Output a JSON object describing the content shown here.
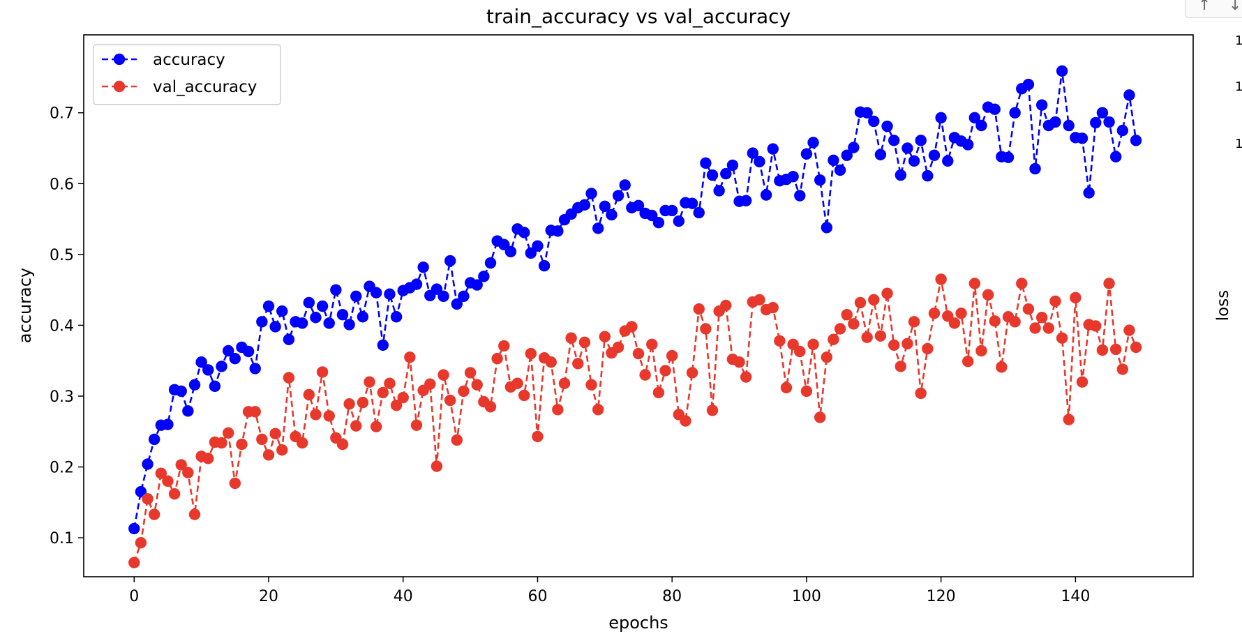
{
  "chart_data": {
    "type": "line",
    "title": "train_accuracy vs val_accuracy",
    "xlabel": "epochs",
    "ylabel": "accuracy",
    "xlim": [
      -7.5,
      157.5
    ],
    "ylim": [
      0.045,
      0.81
    ],
    "xticks": [
      0,
      20,
      40,
      60,
      80,
      100,
      120,
      140
    ],
    "yticks": [
      0.1,
      0.2,
      0.3,
      0.4,
      0.5,
      0.6,
      0.7
    ],
    "grid": false,
    "legend_position": "top-left",
    "series": [
      {
        "name": "accuracy",
        "color": "#0000ff",
        "linestyle": "dashed",
        "marker": "circle",
        "values": [
          0.113,
          0.165,
          0.204,
          0.239,
          0.259,
          0.26,
          0.309,
          0.307,
          0.279,
          0.316,
          0.348,
          0.337,
          0.314,
          0.342,
          0.364,
          0.353,
          0.369,
          0.363,
          0.339,
          0.405,
          0.427,
          0.398,
          0.42,
          0.38,
          0.405,
          0.403,
          0.432,
          0.411,
          0.427,
          0.403,
          0.45,
          0.415,
          0.401,
          0.441,
          0.412,
          0.455,
          0.446,
          0.372,
          0.444,
          0.412,
          0.449,
          0.453,
          0.458,
          0.482,
          0.442,
          0.451,
          0.441,
          0.491,
          0.43,
          0.441,
          0.46,
          0.457,
          0.469,
          0.488,
          0.519,
          0.514,
          0.504,
          0.536,
          0.531,
          0.502,
          0.512,
          0.484,
          0.534,
          0.533,
          0.549,
          0.557,
          0.566,
          0.57,
          0.586,
          0.537,
          0.568,
          0.556,
          0.583,
          0.598,
          0.566,
          0.569,
          0.558,
          0.555,
          0.545,
          0.562,
          0.562,
          0.547,
          0.573,
          0.572,
          0.559,
          0.629,
          0.612,
          0.59,
          0.614,
          0.626,
          0.575,
          0.576,
          0.643,
          0.631,
          0.584,
          0.649,
          0.604,
          0.606,
          0.61,
          0.583,
          0.642,
          0.658,
          0.605,
          0.538,
          0.633,
          0.619,
          0.64,
          0.651,
          0.701,
          0.7,
          0.688,
          0.641,
          0.681,
          0.661,
          0.612,
          0.65,
          0.632,
          0.661,
          0.611,
          0.64,
          0.693,
          0.632,
          0.665,
          0.66,
          0.655,
          0.693,
          0.682,
          0.708,
          0.705,
          0.638,
          0.637,
          0.7,
          0.734,
          0.74,
          0.621,
          0.711,
          0.682,
          0.687,
          0.759,
          0.682,
          0.665,
          0.664,
          0.587,
          0.686,
          0.7,
          0.687,
          0.638,
          0.675,
          0.725,
          0.661
        ]
      },
      {
        "name": "val_accuracy",
        "color": "#e8372b",
        "linestyle": "dashed",
        "marker": "circle",
        "values": [
          0.065,
          0.093,
          0.155,
          0.133,
          0.191,
          0.18,
          0.162,
          0.203,
          0.192,
          0.133,
          0.215,
          0.212,
          0.235,
          0.234,
          0.248,
          0.177,
          0.232,
          0.278,
          0.278,
          0.239,
          0.217,
          0.247,
          0.224,
          0.326,
          0.243,
          0.234,
          0.302,
          0.274,
          0.334,
          0.272,
          0.241,
          0.232,
          0.289,
          0.258,
          0.291,
          0.32,
          0.257,
          0.305,
          0.318,
          0.287,
          0.298,
          0.355,
          0.259,
          0.308,
          0.317,
          0.201,
          0.33,
          0.294,
          0.238,
          0.307,
          0.333,
          0.316,
          0.292,
          0.285,
          0.353,
          0.371,
          0.313,
          0.318,
          0.301,
          0.36,
          0.243,
          0.354,
          0.348,
          0.281,
          0.318,
          0.382,
          0.346,
          0.376,
          0.316,
          0.281,
          0.384,
          0.361,
          0.369,
          0.392,
          0.398,
          0.36,
          0.33,
          0.373,
          0.305,
          0.336,
          0.357,
          0.274,
          0.265,
          0.333,
          0.423,
          0.395,
          0.28,
          0.42,
          0.428,
          0.352,
          0.348,
          0.327,
          0.433,
          0.436,
          0.422,
          0.425,
          0.378,
          0.312,
          0.373,
          0.363,
          0.307,
          0.373,
          0.27,
          0.355,
          0.38,
          0.395,
          0.415,
          0.402,
          0.432,
          0.383,
          0.436,
          0.385,
          0.445,
          0.372,
          0.342,
          0.374,
          0.405,
          0.304,
          0.367,
          0.417,
          0.465,
          0.413,
          0.403,
          0.417,
          0.349,
          0.459,
          0.364,
          0.443,
          0.406,
          0.341,
          0.412,
          0.405,
          0.459,
          0.423,
          0.396,
          0.411,
          0.396,
          0.434,
          0.382,
          0.267,
          0.439,
          0.32,
          0.401,
          0.399,
          0.365,
          0.459,
          0.366,
          0.338,
          0.393,
          0.369
        ]
      }
    ]
  },
  "side_panel": {
    "label": "loss",
    "arrow_up": "↑",
    "arrow_down": "↓",
    "edge_marks": [
      "1",
      "1",
      "1"
    ]
  }
}
